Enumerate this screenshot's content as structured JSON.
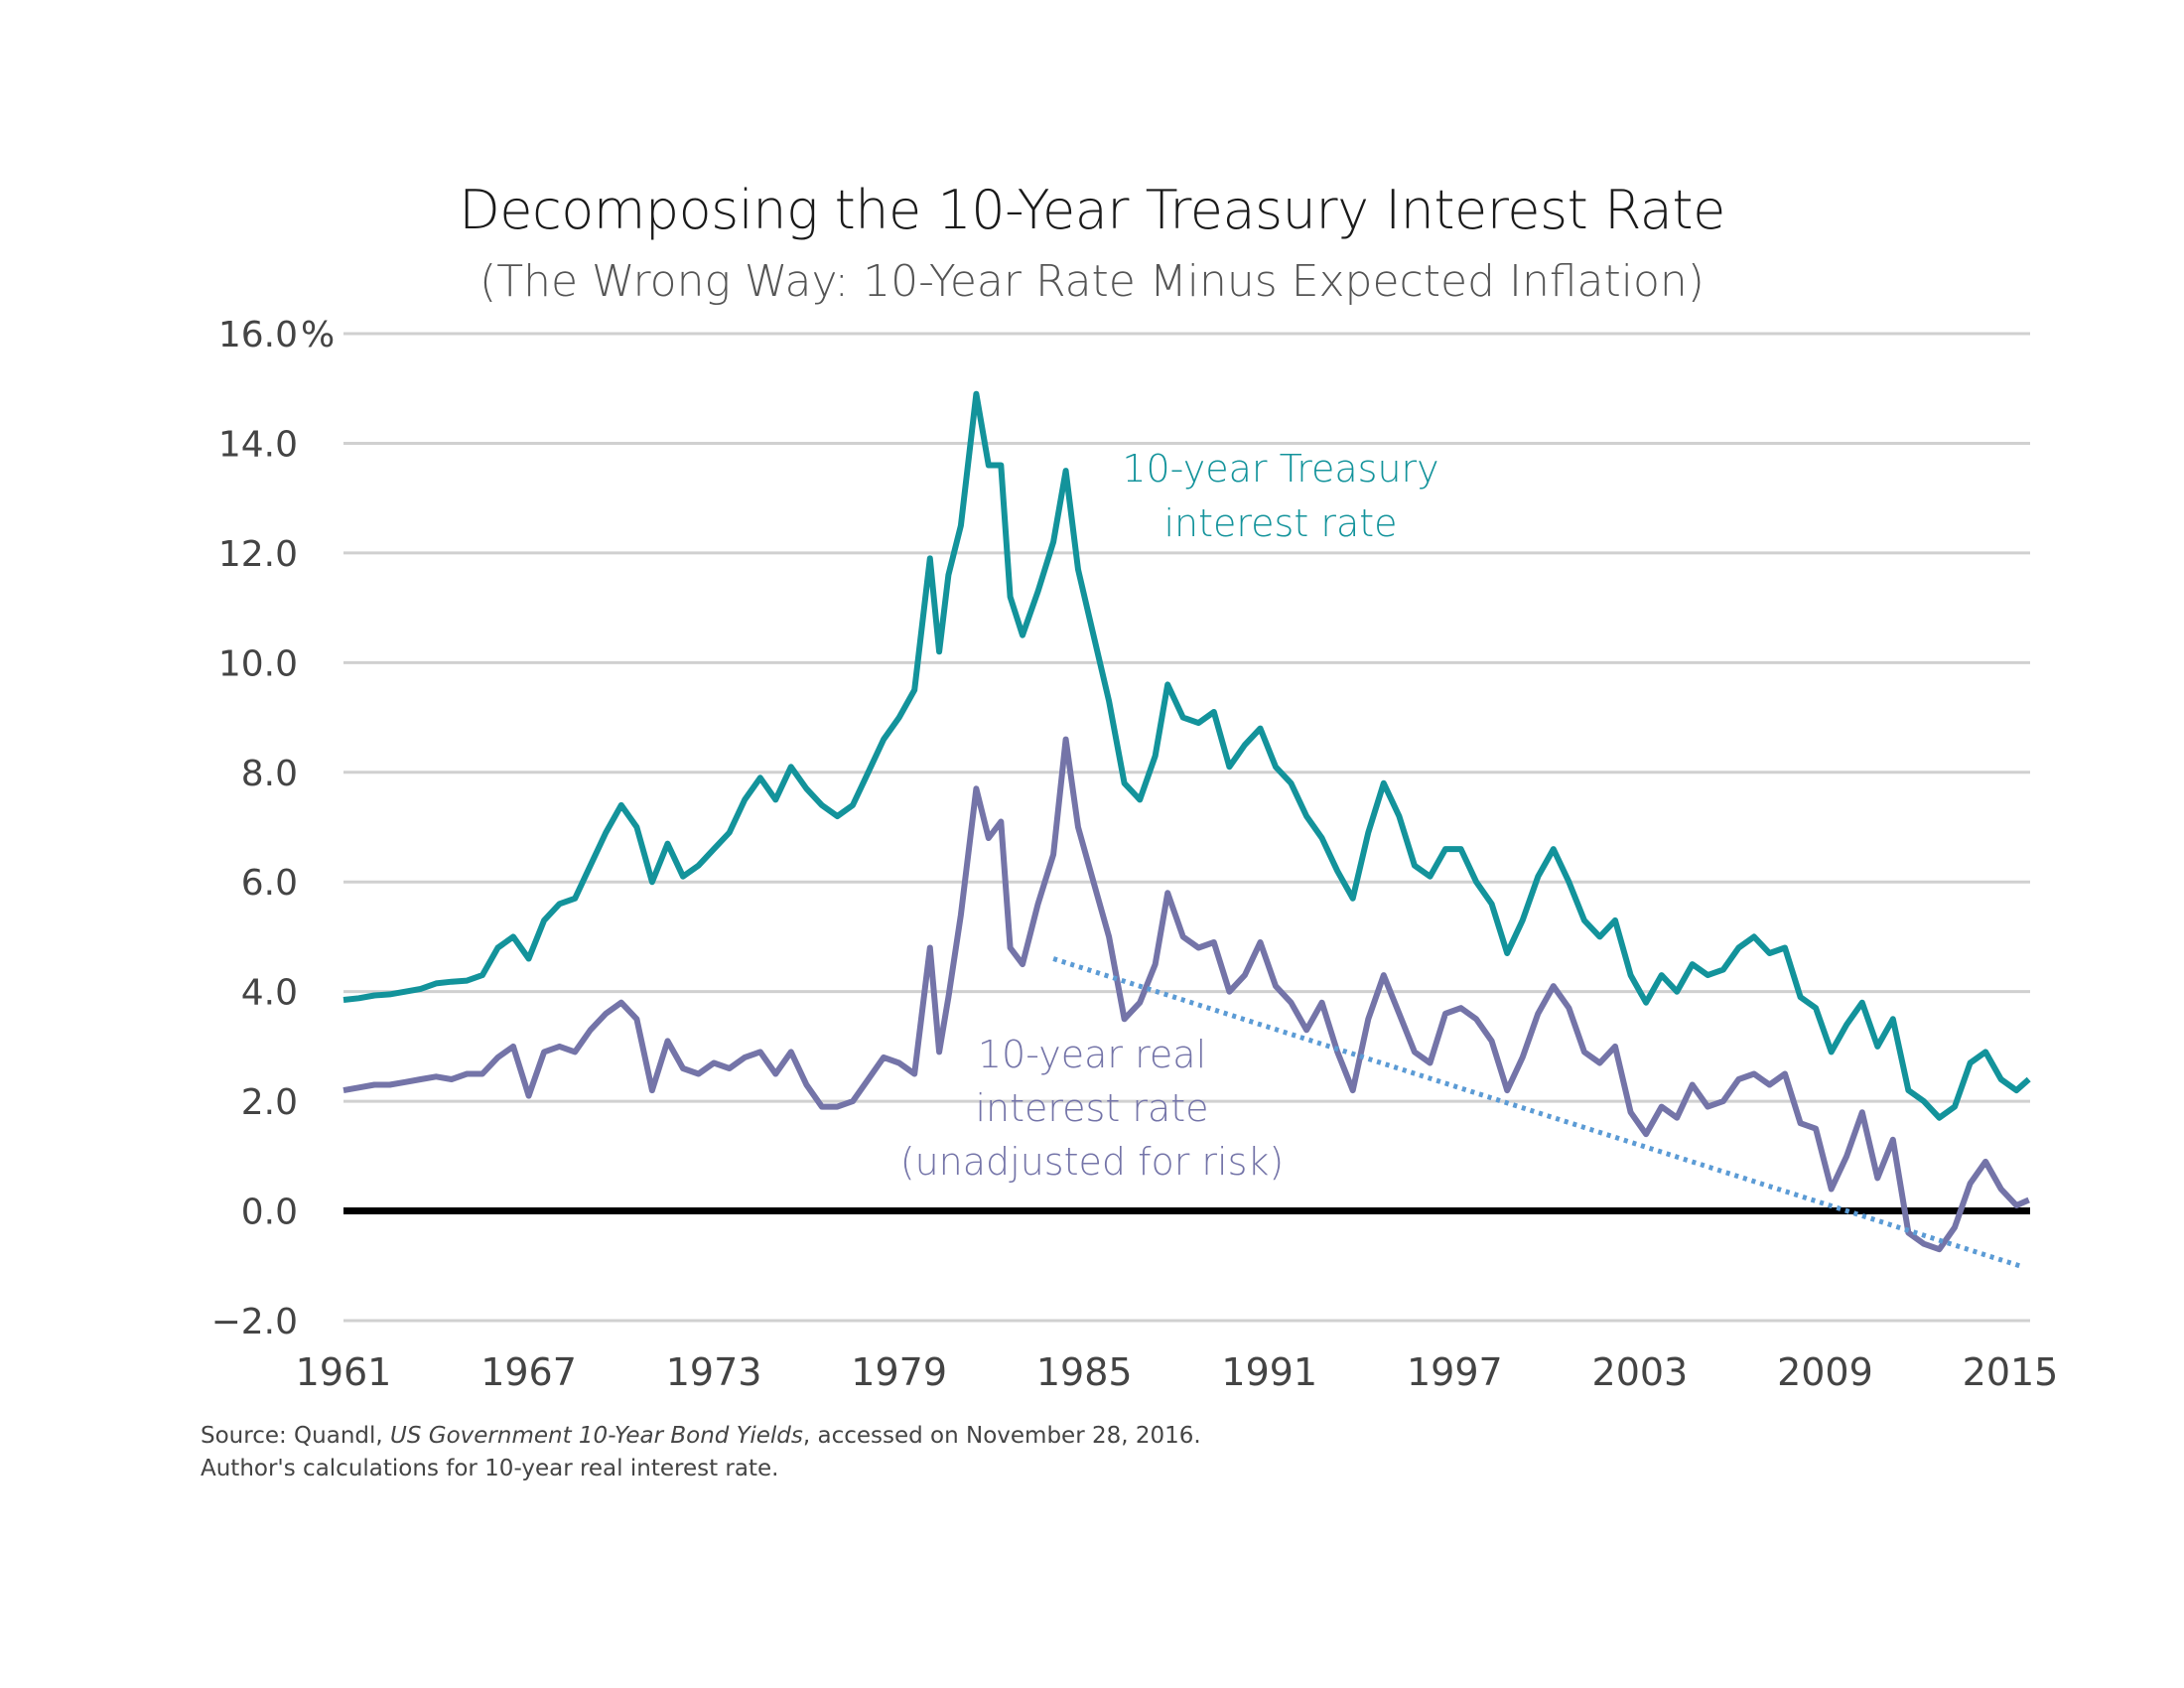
{
  "title": "Decomposing the 10-Year Treasury Interest Rate",
  "subtitle": "(The Wrong Way: 10-Year Rate Minus Expected Inflation)",
  "source": {
    "line1_prefix": "Source: Quandl, ",
    "line1_italic": "US Government 10-Year Bond Yields",
    "line1_suffix": ", accessed on November 28, 2016.",
    "line2": "Author's calculations for 10-year real interest rate."
  },
  "chart_data": {
    "type": "line",
    "ylim": [
      -2,
      16
    ],
    "xlim": [
      1961,
      2015.6
    ],
    "yticks": [
      "16.0%",
      "14.0",
      "12.0",
      "10.0",
      "8.0",
      "6.0",
      "4.0",
      "2.0",
      "0.0",
      "−2.0"
    ],
    "ytick_values": [
      16,
      14,
      12,
      10,
      8,
      6,
      4,
      2,
      0,
      -2
    ],
    "xticks": [
      "1961",
      "1967",
      "1973",
      "1979",
      "1985",
      "1991",
      "1997",
      "2003",
      "2009",
      "2015"
    ],
    "xtick_values": [
      1961,
      1967,
      1973,
      1979,
      1985,
      1991,
      1997,
      2003,
      2009,
      2015
    ],
    "grid": true,
    "annotations": {
      "treasury": [
        "10-year Treasury",
        "interest rate"
      ],
      "real": [
        "10-year real",
        "interest rate",
        "(unadjusted for risk)"
      ]
    },
    "colors": {
      "treasury": "#13939b",
      "real": "#7474a8",
      "trend": "#5b9bd5",
      "zero": "#000000",
      "grid": "#d0d0d0"
    },
    "series": [
      {
        "name": "10-year Treasury interest rate",
        "points": [
          [
            1961.0,
            3.85
          ],
          [
            1961.5,
            3.88
          ],
          [
            1962.0,
            3.93
          ],
          [
            1962.5,
            3.95
          ],
          [
            1963.0,
            4.0
          ],
          [
            1963.5,
            4.05
          ],
          [
            1964.0,
            4.15
          ],
          [
            1964.5,
            4.18
          ],
          [
            1965.0,
            4.2
          ],
          [
            1965.5,
            4.3
          ],
          [
            1966.0,
            4.8
          ],
          [
            1966.5,
            5.0
          ],
          [
            1967.0,
            4.6
          ],
          [
            1967.5,
            5.3
          ],
          [
            1968.0,
            5.6
          ],
          [
            1968.5,
            5.7
          ],
          [
            1969.0,
            6.3
          ],
          [
            1969.5,
            6.9
          ],
          [
            1970.0,
            7.4
          ],
          [
            1970.5,
            7.0
          ],
          [
            1971.0,
            6.0
          ],
          [
            1971.5,
            6.7
          ],
          [
            1972.0,
            6.1
          ],
          [
            1972.5,
            6.3
          ],
          [
            1973.0,
            6.6
          ],
          [
            1973.5,
            6.9
          ],
          [
            1974.0,
            7.5
          ],
          [
            1974.5,
            7.9
          ],
          [
            1975.0,
            7.5
          ],
          [
            1975.5,
            8.1
          ],
          [
            1976.0,
            7.7
          ],
          [
            1976.5,
            7.4
          ],
          [
            1977.0,
            7.2
          ],
          [
            1977.5,
            7.4
          ],
          [
            1978.0,
            8.0
          ],
          [
            1978.5,
            8.6
          ],
          [
            1979.0,
            9.0
          ],
          [
            1979.5,
            9.5
          ],
          [
            1980.0,
            11.9
          ],
          [
            1980.3,
            10.2
          ],
          [
            1980.6,
            11.6
          ],
          [
            1981.0,
            12.5
          ],
          [
            1981.5,
            14.9
          ],
          [
            1981.9,
            13.6
          ],
          [
            1982.3,
            13.6
          ],
          [
            1982.6,
            11.2
          ],
          [
            1983.0,
            10.5
          ],
          [
            1983.5,
            11.3
          ],
          [
            1984.0,
            12.2
          ],
          [
            1984.4,
            13.5
          ],
          [
            1984.8,
            11.7
          ],
          [
            1985.3,
            10.5
          ],
          [
            1985.8,
            9.3
          ],
          [
            1986.3,
            7.8
          ],
          [
            1986.8,
            7.5
          ],
          [
            1987.3,
            8.3
          ],
          [
            1987.7,
            9.6
          ],
          [
            1988.2,
            9.0
          ],
          [
            1988.7,
            8.9
          ],
          [
            1989.2,
            9.1
          ],
          [
            1989.7,
            8.1
          ],
          [
            1990.2,
            8.5
          ],
          [
            1990.7,
            8.8
          ],
          [
            1991.2,
            8.1
          ],
          [
            1991.7,
            7.8
          ],
          [
            1992.2,
            7.2
          ],
          [
            1992.7,
            6.8
          ],
          [
            1993.2,
            6.2
          ],
          [
            1993.7,
            5.7
          ],
          [
            1994.2,
            6.9
          ],
          [
            1994.7,
            7.8
          ],
          [
            1995.2,
            7.2
          ],
          [
            1995.7,
            6.3
          ],
          [
            1996.2,
            6.1
          ],
          [
            1996.7,
            6.6
          ],
          [
            1997.2,
            6.6
          ],
          [
            1997.7,
            6.0
          ],
          [
            1998.2,
            5.6
          ],
          [
            1998.7,
            4.7
          ],
          [
            1999.2,
            5.3
          ],
          [
            1999.7,
            6.1
          ],
          [
            2000.2,
            6.6
          ],
          [
            2000.7,
            6.0
          ],
          [
            2001.2,
            5.3
          ],
          [
            2001.7,
            5.0
          ],
          [
            2002.2,
            5.3
          ],
          [
            2002.7,
            4.3
          ],
          [
            2003.2,
            3.8
          ],
          [
            2003.7,
            4.3
          ],
          [
            2004.2,
            4.0
          ],
          [
            2004.7,
            4.5
          ],
          [
            2005.2,
            4.3
          ],
          [
            2005.7,
            4.4
          ],
          [
            2006.2,
            4.8
          ],
          [
            2006.7,
            5.0
          ],
          [
            2007.2,
            4.7
          ],
          [
            2007.7,
            4.8
          ],
          [
            2008.2,
            3.9
          ],
          [
            2008.7,
            3.7
          ],
          [
            2009.2,
            2.9
          ],
          [
            2009.7,
            3.4
          ],
          [
            2010.2,
            3.8
          ],
          [
            2010.7,
            3.0
          ],
          [
            2011.2,
            3.5
          ],
          [
            2011.7,
            2.2
          ],
          [
            2012.2,
            2.0
          ],
          [
            2012.7,
            1.7
          ],
          [
            2013.2,
            1.9
          ],
          [
            2013.7,
            2.7
          ],
          [
            2014.2,
            2.9
          ],
          [
            2014.7,
            2.4
          ],
          [
            2015.2,
            2.2
          ],
          [
            2015.6,
            2.4
          ]
        ]
      },
      {
        "name": "10-year real interest rate (unadjusted for risk)",
        "points": [
          [
            1961.0,
            2.2
          ],
          [
            1961.5,
            2.25
          ],
          [
            1962.0,
            2.3
          ],
          [
            1962.5,
            2.3
          ],
          [
            1963.0,
            2.35
          ],
          [
            1963.5,
            2.4
          ],
          [
            1964.0,
            2.45
          ],
          [
            1964.5,
            2.4
          ],
          [
            1965.0,
            2.5
          ],
          [
            1965.5,
            2.5
          ],
          [
            1966.0,
            2.8
          ],
          [
            1966.5,
            3.0
          ],
          [
            1967.0,
            2.1
          ],
          [
            1967.5,
            2.9
          ],
          [
            1968.0,
            3.0
          ],
          [
            1968.5,
            2.9
          ],
          [
            1969.0,
            3.3
          ],
          [
            1969.5,
            3.6
          ],
          [
            1970.0,
            3.8
          ],
          [
            1970.5,
            3.5
          ],
          [
            1971.0,
            2.2
          ],
          [
            1971.5,
            3.1
          ],
          [
            1972.0,
            2.6
          ],
          [
            1972.5,
            2.5
          ],
          [
            1973.0,
            2.7
          ],
          [
            1973.5,
            2.6
          ],
          [
            1974.0,
            2.8
          ],
          [
            1974.5,
            2.9
          ],
          [
            1975.0,
            2.5
          ],
          [
            1975.5,
            2.9
          ],
          [
            1976.0,
            2.3
          ],
          [
            1976.5,
            1.9
          ],
          [
            1977.0,
            1.9
          ],
          [
            1977.5,
            2.0
          ],
          [
            1978.0,
            2.4
          ],
          [
            1978.5,
            2.8
          ],
          [
            1979.0,
            2.7
          ],
          [
            1979.5,
            2.5
          ],
          [
            1980.0,
            4.8
          ],
          [
            1980.3,
            2.9
          ],
          [
            1980.6,
            3.9
          ],
          [
            1981.0,
            5.4
          ],
          [
            1981.5,
            7.7
          ],
          [
            1981.9,
            6.8
          ],
          [
            1982.3,
            7.1
          ],
          [
            1982.6,
            4.8
          ],
          [
            1983.0,
            4.5
          ],
          [
            1983.5,
            5.6
          ],
          [
            1984.0,
            6.5
          ],
          [
            1984.4,
            8.6
          ],
          [
            1984.8,
            7.0
          ],
          [
            1985.3,
            6.0
          ],
          [
            1985.8,
            5.0
          ],
          [
            1986.3,
            3.5
          ],
          [
            1986.8,
            3.8
          ],
          [
            1987.3,
            4.5
          ],
          [
            1987.7,
            5.8
          ],
          [
            1988.2,
            5.0
          ],
          [
            1988.7,
            4.8
          ],
          [
            1989.2,
            4.9
          ],
          [
            1989.7,
            4.0
          ],
          [
            1990.2,
            4.3
          ],
          [
            1990.7,
            4.9
          ],
          [
            1991.2,
            4.1
          ],
          [
            1991.7,
            3.8
          ],
          [
            1992.2,
            3.3
          ],
          [
            1992.7,
            3.8
          ],
          [
            1993.2,
            2.9
          ],
          [
            1993.7,
            2.2
          ],
          [
            1994.2,
            3.5
          ],
          [
            1994.7,
            4.3
          ],
          [
            1995.2,
            3.6
          ],
          [
            1995.7,
            2.9
          ],
          [
            1996.2,
            2.7
          ],
          [
            1996.7,
            3.6
          ],
          [
            1997.2,
            3.7
          ],
          [
            1997.7,
            3.5
          ],
          [
            1998.2,
            3.1
          ],
          [
            1998.7,
            2.2
          ],
          [
            1999.2,
            2.8
          ],
          [
            1999.7,
            3.6
          ],
          [
            2000.2,
            4.1
          ],
          [
            2000.7,
            3.7
          ],
          [
            2001.2,
            2.9
          ],
          [
            2001.7,
            2.7
          ],
          [
            2002.2,
            3.0
          ],
          [
            2002.7,
            1.8
          ],
          [
            2003.2,
            1.4
          ],
          [
            2003.7,
            1.9
          ],
          [
            2004.2,
            1.7
          ],
          [
            2004.7,
            2.3
          ],
          [
            2005.2,
            1.9
          ],
          [
            2005.7,
            2.0
          ],
          [
            2006.2,
            2.4
          ],
          [
            2006.7,
            2.5
          ],
          [
            2007.2,
            2.3
          ],
          [
            2007.7,
            2.5
          ],
          [
            2008.2,
            1.6
          ],
          [
            2008.7,
            1.5
          ],
          [
            2009.2,
            0.4
          ],
          [
            2009.7,
            1.0
          ],
          [
            2010.2,
            1.8
          ],
          [
            2010.7,
            0.6
          ],
          [
            2011.2,
            1.3
          ],
          [
            2011.7,
            -0.4
          ],
          [
            2012.2,
            -0.6
          ],
          [
            2012.7,
            -0.7
          ],
          [
            2013.2,
            -0.3
          ],
          [
            2013.7,
            0.5
          ],
          [
            2014.2,
            0.9
          ],
          [
            2014.7,
            0.4
          ],
          [
            2015.2,
            0.1
          ],
          [
            2015.6,
            0.2
          ]
        ]
      }
    ],
    "trend": {
      "x": [
        1984.0,
        2015.3
      ],
      "y": [
        4.6,
        -1.0
      ]
    }
  }
}
